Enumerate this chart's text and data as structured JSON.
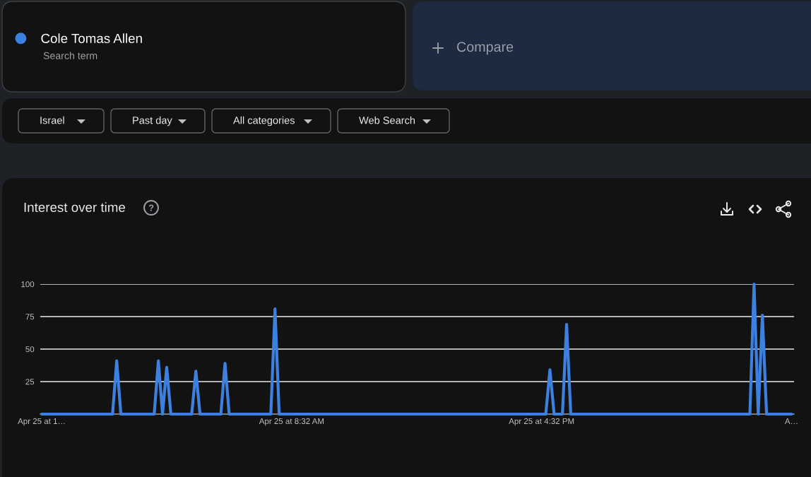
{
  "chart_data": {
    "type": "line",
    "title": "Interest over time",
    "annotations": [
      "Search term",
      "Compare",
      "Israel",
      "Past day",
      "All categories",
      "Web Search"
    ],
    "categories": [
      "Apr 25 at 1…",
      null,
      null,
      null,
      null,
      null,
      null,
      null,
      null,
      null,
      null,
      null,
      null,
      null,
      null,
      null,
      null,
      null,
      null,
      null,
      null,
      null,
      null,
      null,
      null,
      null,
      null,
      null,
      null,
      null,
      null,
      null,
      null,
      null,
      null,
      null,
      null,
      null,
      null,
      null,
      null,
      null,
      null,
      null,
      null,
      null,
      null,
      null,
      null,
      null,
      null,
      null,
      null,
      null,
      null,
      null,
      null,
      null,
      null,
      null,
      "Apr 25 at 8:32 AM",
      null,
      null,
      null,
      null,
      null,
      null,
      null,
      null,
      null,
      null,
      null,
      null,
      null,
      null,
      null,
      null,
      null,
      null,
      null,
      null,
      null,
      null,
      null,
      null,
      null,
      null,
      null,
      null,
      null,
      null,
      null,
      null,
      null,
      null,
      null,
      null,
      null,
      null,
      null,
      null,
      null,
      null,
      null,
      null,
      null,
      null,
      null,
      null,
      null,
      null,
      null,
      null,
      null,
      null,
      null,
      null,
      null,
      null,
      null,
      "Apr 25 at 4:32 PM",
      null,
      null,
      null,
      null,
      null,
      null,
      null,
      null,
      null,
      null,
      null,
      null,
      null,
      null,
      null,
      null,
      null,
      null,
      null,
      null,
      null,
      null,
      null,
      null,
      null,
      null,
      null,
      null,
      null,
      null,
      null,
      null,
      null,
      null,
      null,
      null,
      null,
      null,
      null,
      null,
      null,
      null,
      null,
      null,
      null,
      null,
      null,
      null,
      null,
      null,
      null,
      null,
      null,
      null,
      null,
      null,
      null,
      null,
      null,
      "A…"
    ],
    "series": [
      {
        "name": "Cole Tomas Allen",
        "color": "#3c80e0",
        "values": [
          0,
          0,
          0,
          0,
          0,
          0,
          0,
          0,
          0,
          0,
          0,
          0,
          0,
          0,
          0,
          0,
          0,
          0,
          41,
          0,
          0,
          0,
          0,
          0,
          0,
          0,
          0,
          0,
          41,
          0,
          36,
          0,
          0,
          0,
          0,
          0,
          0,
          33,
          0,
          0,
          0,
          0,
          0,
          0,
          39,
          0,
          0,
          0,
          0,
          0,
          0,
          0,
          0,
          0,
          0,
          0,
          81,
          0,
          0,
          0,
          0,
          0,
          0,
          0,
          0,
          0,
          0,
          0,
          0,
          0,
          0,
          0,
          0,
          0,
          0,
          0,
          0,
          0,
          0,
          0,
          0,
          0,
          0,
          0,
          0,
          0,
          0,
          0,
          0,
          0,
          0,
          0,
          0,
          0,
          0,
          0,
          0,
          0,
          0,
          0,
          0,
          0,
          0,
          0,
          0,
          0,
          0,
          0,
          0,
          0,
          0,
          0,
          0,
          0,
          0,
          0,
          0,
          0,
          0,
          0,
          0,
          0,
          34,
          0,
          0,
          0,
          69,
          0,
          0,
          0,
          0,
          0,
          0,
          0,
          0,
          0,
          0,
          0,
          0,
          0,
          0,
          0,
          0,
          0,
          0,
          0,
          0,
          0,
          0,
          0,
          0,
          0,
          0,
          0,
          0,
          0,
          0,
          0,
          0,
          0,
          0,
          0,
          0,
          0,
          0,
          0,
          0,
          0,
          0,
          0,
          0,
          100,
          0,
          76,
          0,
          0,
          0,
          0,
          0,
          0,
          0
        ]
      }
    ],
    "ylim": [
      0,
      100
    ],
    "yticks": [
      25,
      50,
      75,
      100
    ],
    "grid": "y",
    "legend": "top left"
  }
}
